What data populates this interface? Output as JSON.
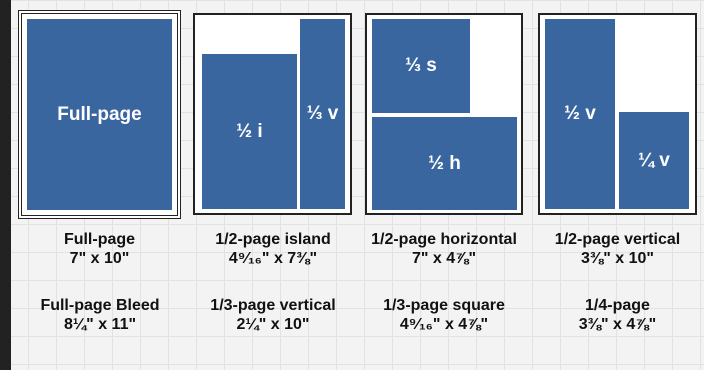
{
  "ads": {
    "full_page": {
      "label": "Full-page"
    },
    "half_island": {
      "label_i": "½ i",
      "label_v": "⅓ v"
    },
    "horizontal": {
      "label_s": "⅓ s",
      "label_h": "½ h"
    },
    "vertical": {
      "label_v": "½ v",
      "label_q": "¼ v"
    }
  },
  "captions": [
    {
      "name": "Full-page",
      "size": "7\" x 10\""
    },
    {
      "name": "1/2-page island",
      "size": "4⁹⁄₁₆\" x 7⅜\""
    },
    {
      "name": "1/2-page horizontal",
      "size": "7\" x 4⅞\""
    },
    {
      "name": "1/2-page vertical",
      "size": "3⅜\" x 10\""
    },
    {
      "name": "Full-page Bleed",
      "size": "8¼\" x 11\""
    },
    {
      "name": "1/3-page vertical",
      "size": "2¼\" x 10\""
    },
    {
      "name": "1/3-page square",
      "size": "4⁹⁄₁₆\" x 4⅞\""
    },
    {
      "name": "1/4-page",
      "size": "3⅜\" x 4⅞\""
    }
  ]
}
